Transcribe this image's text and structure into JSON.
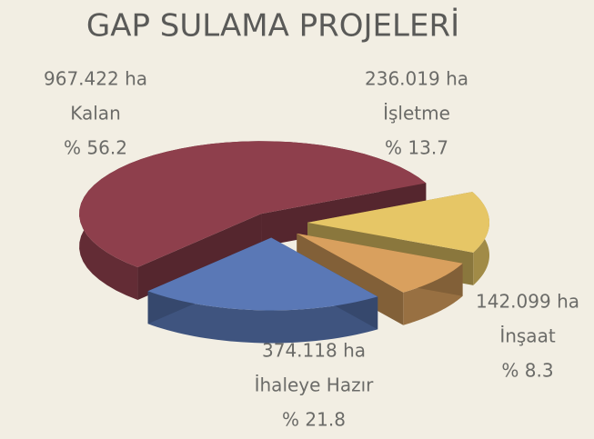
{
  "chart_data": {
    "type": "pie3d",
    "title": "GAP SULAMA PROJELERİ",
    "categories": [
      "Kalan",
      "İşletme",
      "İnşaat",
      "İhaleye Hazır"
    ],
    "values": [
      56.2,
      13.7,
      8.3,
      21.8
    ],
    "value_labels": [
      "% 56.2",
      "% 13.7",
      "% 8.3",
      "% 21.8"
    ],
    "area_labels": [
      "967.422 ha",
      "236.019 ha",
      "142.099 ha",
      "374.118 ha"
    ],
    "colors": [
      "#8e3f4c",
      "#e6c666",
      "#d9a05e",
      "#5a78b6"
    ]
  }
}
